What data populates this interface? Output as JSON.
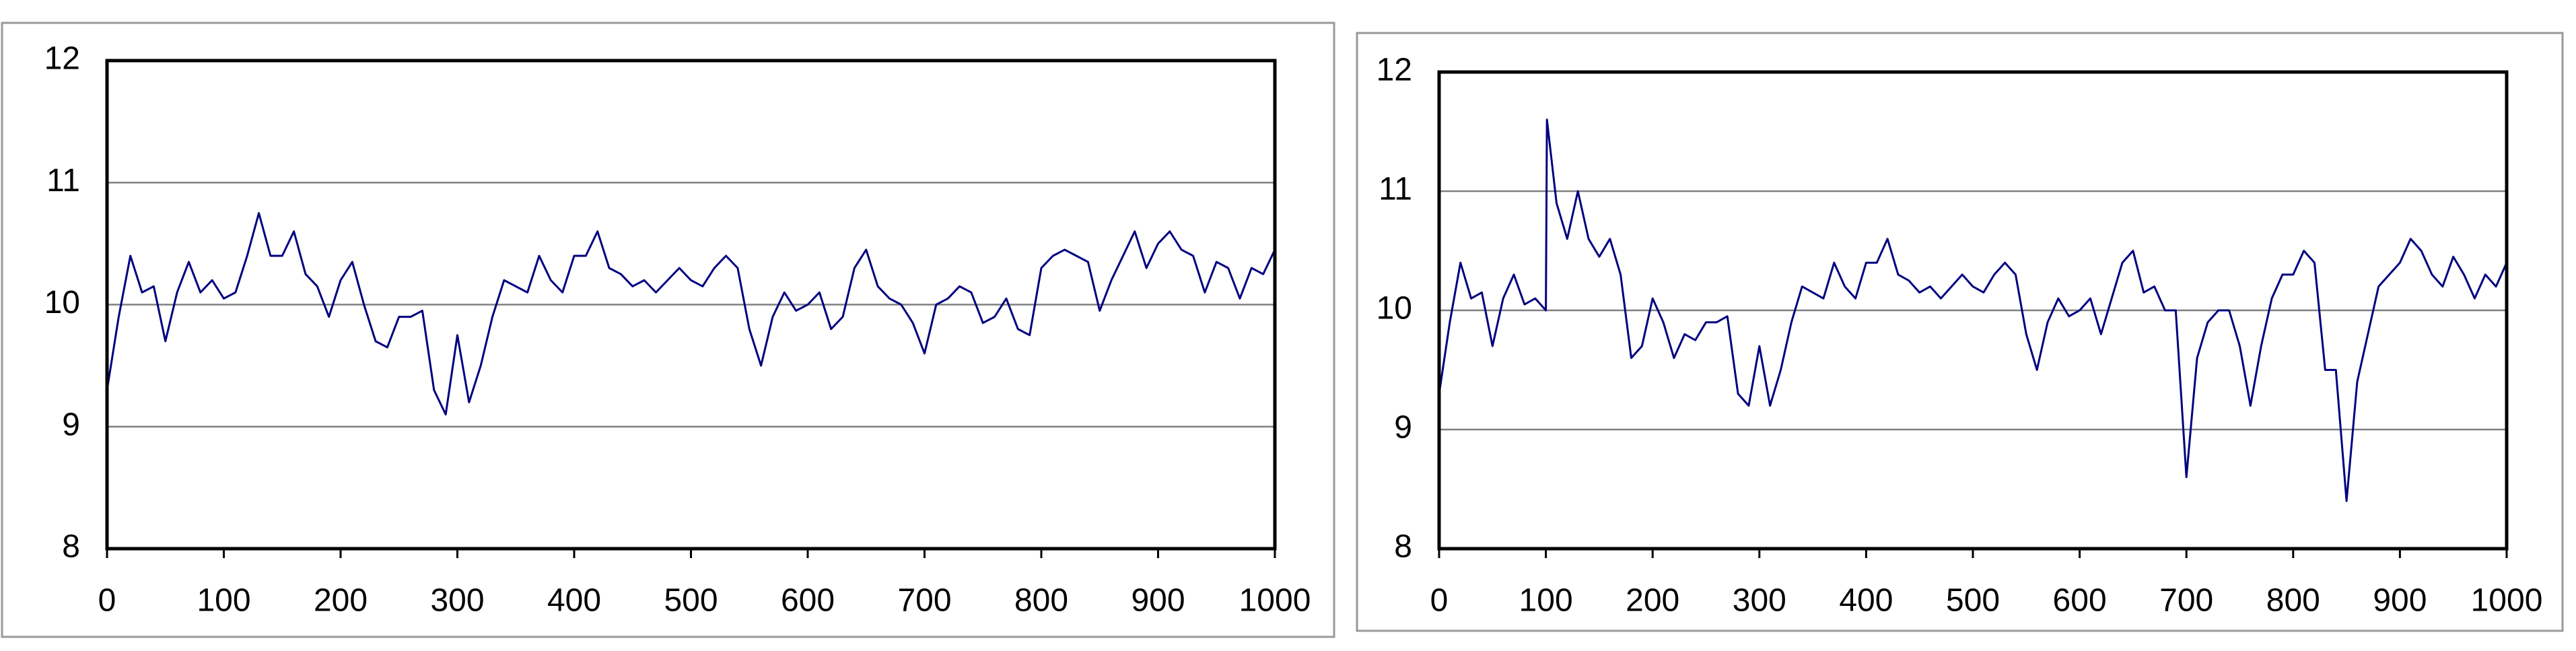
{
  "chart_data": [
    {
      "type": "line",
      "x": [
        0,
        10,
        20,
        30,
        40,
        50,
        60,
        70,
        80,
        90,
        100,
        110,
        120,
        130,
        140,
        150,
        160,
        170,
        180,
        190,
        200,
        210,
        220,
        230,
        240,
        250,
        260,
        270,
        280,
        290,
        300,
        310,
        320,
        330,
        340,
        350,
        360,
        370,
        380,
        390,
        400,
        410,
        420,
        430,
        440,
        450,
        460,
        470,
        480,
        490,
        500,
        510,
        520,
        530,
        540,
        550,
        560,
        570,
        580,
        590,
        600,
        610,
        620,
        630,
        640,
        650,
        660,
        670,
        680,
        690,
        700,
        710,
        720,
        730,
        740,
        750,
        760,
        770,
        780,
        790,
        800,
        810,
        820,
        830,
        840,
        850,
        860,
        870,
        880,
        890,
        900,
        910,
        920,
        930,
        940,
        950,
        960,
        970,
        980,
        990,
        1000
      ],
      "series": [
        {
          "color": "#000080",
          "values": [
            9.3,
            9.9,
            10.4,
            10.1,
            10.15,
            9.7,
            10.1,
            10.35,
            10.1,
            10.2,
            10.05,
            10.1,
            10.4,
            10.75,
            10.4,
            10.4,
            10.6,
            10.25,
            10.15,
            9.9,
            10.2,
            10.35,
            10.0,
            9.7,
            9.65,
            9.9,
            9.9,
            9.95,
            9.3,
            9.1,
            9.75,
            9.2,
            9.5,
            9.9,
            10.2,
            10.15,
            10.1,
            10.4,
            10.2,
            10.1,
            10.4,
            10.4,
            10.6,
            10.3,
            10.25,
            10.15,
            10.2,
            10.1,
            10.2,
            10.3,
            10.2,
            10.15,
            10.3,
            10.4,
            10.3,
            9.8,
            9.5,
            9.9,
            10.1,
            9.95,
            10.0,
            10.1,
            9.8,
            9.9,
            10.3,
            10.45,
            10.15,
            10.05,
            10.0,
            9.85,
            9.6,
            10.0,
            10.05,
            10.15,
            10.1,
            9.85,
            9.9,
            10.05,
            9.8,
            9.75,
            10.3,
            10.4,
            10.45,
            10.4,
            10.35,
            9.95,
            10.2,
            10.4,
            10.6,
            10.3,
            10.5,
            10.6,
            10.45,
            10.4,
            10.1,
            10.35,
            10.3,
            10.05,
            10.3,
            10.25,
            10.45
          ]
        }
      ],
      "xlim": [
        0,
        1000
      ],
      "ylim": [
        8,
        12
      ],
      "xticks": [
        0,
        100,
        200,
        300,
        400,
        500,
        600,
        700,
        800,
        900,
        1000
      ],
      "yticks": [
        8,
        9,
        10,
        11,
        12
      ],
      "grid": true
    },
    {
      "type": "line",
      "x": [
        0,
        10,
        20,
        30,
        40,
        50,
        60,
        70,
        80,
        90,
        100,
        101,
        110,
        120,
        130,
        140,
        150,
        160,
        170,
        180,
        190,
        200,
        210,
        220,
        230,
        240,
        250,
        260,
        270,
        280,
        290,
        300,
        310,
        320,
        330,
        340,
        350,
        360,
        370,
        380,
        390,
        400,
        410,
        420,
        430,
        440,
        450,
        460,
        470,
        480,
        490,
        500,
        510,
        520,
        530,
        540,
        550,
        560,
        570,
        580,
        590,
        600,
        610,
        620,
        630,
        640,
        650,
        660,
        670,
        680,
        690,
        700,
        710,
        720,
        730,
        740,
        750,
        760,
        770,
        780,
        790,
        800,
        810,
        820,
        830,
        840,
        850,
        860,
        870,
        880,
        890,
        900,
        910,
        920,
        930,
        940,
        950,
        960,
        970,
        980,
        990,
        1000
      ],
      "series": [
        {
          "color": "#000080",
          "values": [
            9.3,
            9.9,
            10.4,
            10.1,
            10.15,
            9.7,
            10.1,
            10.3,
            10.05,
            10.1,
            10.0,
            11.6,
            10.9,
            10.6,
            11.0,
            10.6,
            10.45,
            10.6,
            10.3,
            9.6,
            9.7,
            10.1,
            9.9,
            9.6,
            9.8,
            9.75,
            9.9,
            9.9,
            9.95,
            9.3,
            9.2,
            9.7,
            9.2,
            9.5,
            9.9,
            10.2,
            10.15,
            10.1,
            10.4,
            10.2,
            10.1,
            10.4,
            10.4,
            10.6,
            10.3,
            10.25,
            10.15,
            10.2,
            10.1,
            10.2,
            10.3,
            10.2,
            10.15,
            10.3,
            10.4,
            10.3,
            9.8,
            9.5,
            9.9,
            10.1,
            9.95,
            10.0,
            10.1,
            9.8,
            10.1,
            10.4,
            10.5,
            10.15,
            10.2,
            10.0,
            10.0,
            8.6,
            9.6,
            9.9,
            10.0,
            10.0,
            9.7,
            9.2,
            9.7,
            10.1,
            10.3,
            10.3,
            10.5,
            10.4,
            9.5,
            9.5,
            8.4,
            9.4,
            9.8,
            10.2,
            10.3,
            10.4,
            10.6,
            10.5,
            10.3,
            10.2,
            10.45,
            10.3,
            10.1,
            10.3,
            10.2,
            10.4
          ]
        }
      ],
      "xlim": [
        0,
        1000
      ],
      "ylim": [
        8,
        12
      ],
      "xticks": [
        0,
        100,
        200,
        300,
        400,
        500,
        600,
        700,
        800,
        900,
        1000
      ],
      "yticks": [
        8,
        9,
        10,
        11,
        12
      ],
      "grid": true
    }
  ]
}
